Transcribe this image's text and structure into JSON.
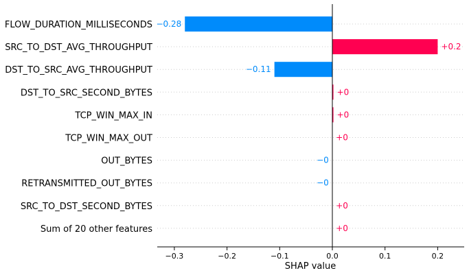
{
  "chart_data": {
    "type": "bar",
    "orientation": "horizontal",
    "xlabel": "SHAP value",
    "xlim": [
      -0.33,
      0.25
    ],
    "xticks": [
      -0.3,
      -0.2,
      -0.1,
      0.0,
      0.1,
      0.2
    ],
    "xtick_labels": [
      "−0.3",
      "−0.2",
      "−0.1",
      "0.0",
      "0.1",
      "0.2"
    ],
    "grid": "dotted horizontal row lines",
    "colors": {
      "positive": "#ff0051",
      "negative": "#008bfb",
      "axis": "#000000",
      "grid": "#cccccc",
      "text": "#000000"
    },
    "features": [
      {
        "name": "FLOW_DURATION_MILLISECONDS",
        "value": -0.28,
        "label": "−0.28"
      },
      {
        "name": "SRC_TO_DST_AVG_THROUGHPUT",
        "value": 0.2,
        "label": "+0.2"
      },
      {
        "name": "DST_TO_SRC_AVG_THROUGHPUT",
        "value": -0.11,
        "label": "−0.11"
      },
      {
        "name": "DST_TO_SRC_SECOND_BYTES",
        "value": 0.002,
        "label": "+0"
      },
      {
        "name": "TCP_WIN_MAX_IN",
        "value": 0.002,
        "label": "+0"
      },
      {
        "name": "TCP_WIN_MAX_OUT",
        "value": 0.0003,
        "label": "+0"
      },
      {
        "name": "OUT_BYTES",
        "value": -0.0003,
        "label": "−0"
      },
      {
        "name": "RETRANSMITTED_OUT_BYTES",
        "value": -0.0003,
        "label": "−0"
      },
      {
        "name": "SRC_TO_DST_SECOND_BYTES",
        "value": 0.0003,
        "label": "+0"
      },
      {
        "name": "Sum of 20 other features",
        "value": 0.0003,
        "label": "+0"
      }
    ]
  }
}
